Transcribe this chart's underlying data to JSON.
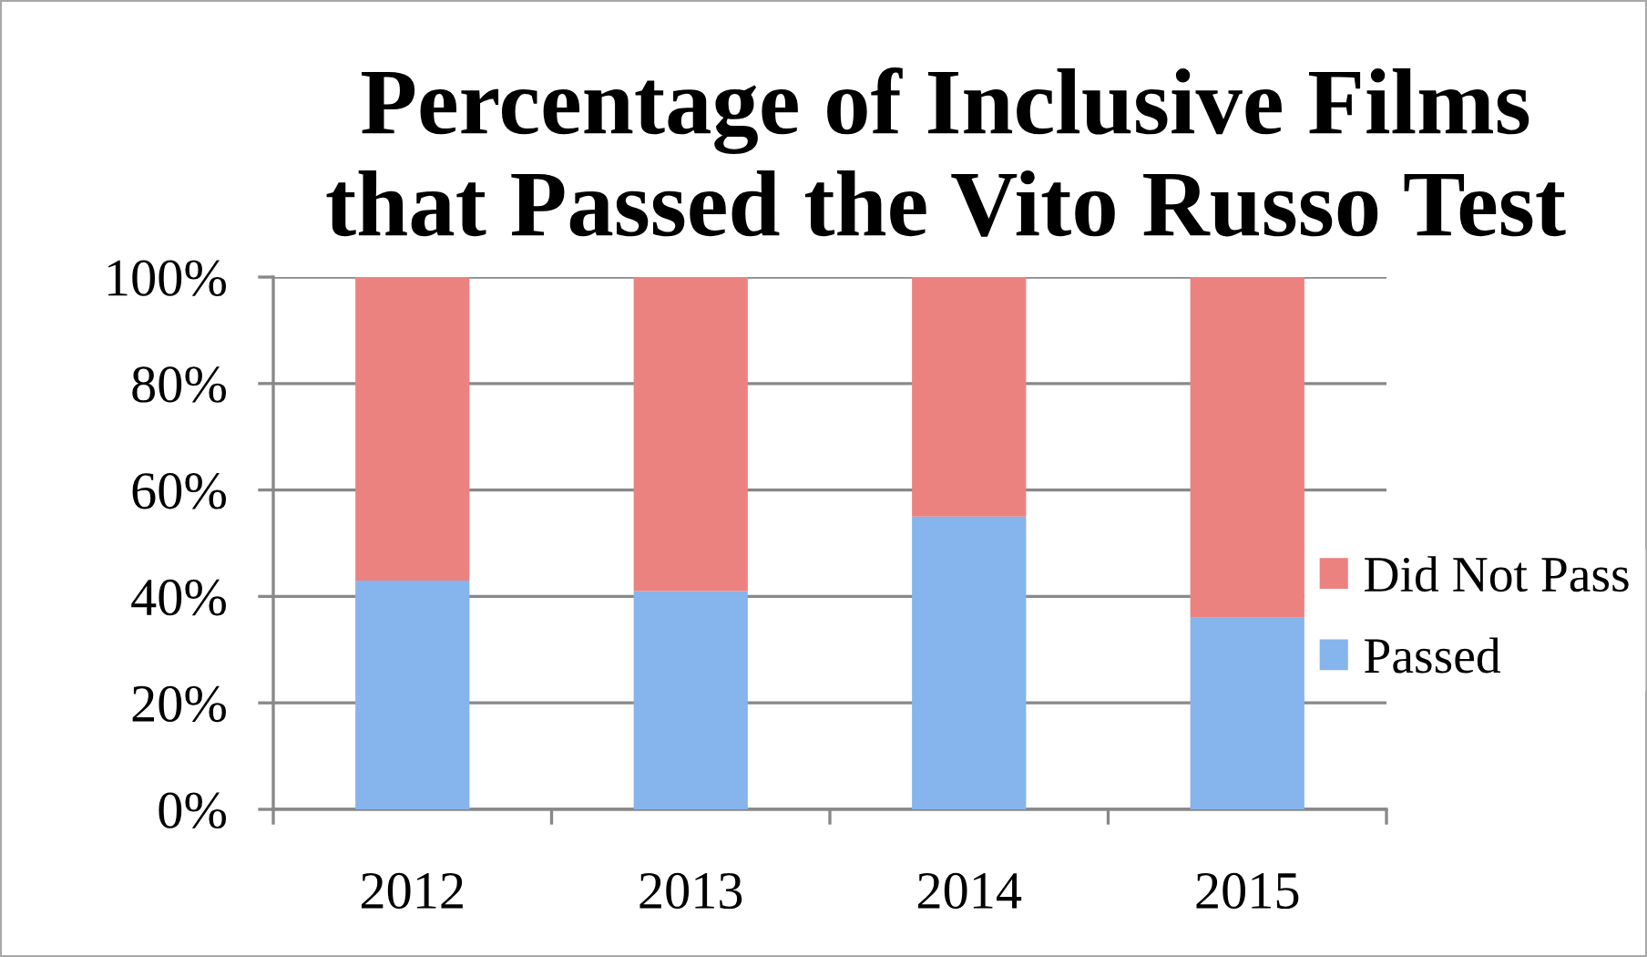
{
  "chart_data": {
    "type": "bar",
    "title": "Percentage of Inclusive Films\nthat Passed the Vito Russo Test",
    "categories": [
      "2012",
      "2013",
      "2014",
      "2015"
    ],
    "series": [
      {
        "name": "Passed",
        "color": "#86b4ec",
        "values": [
          43,
          41,
          55,
          36
        ]
      },
      {
        "name": "Did Not Pass",
        "color": "#ec8280",
        "values": [
          57,
          59,
          45,
          64
        ]
      }
    ],
    "stacked": true,
    "ylim": [
      0,
      100
    ],
    "yticks": [
      {
        "value": 0,
        "label": "0%"
      },
      {
        "value": 20,
        "label": "20%"
      },
      {
        "value": 40,
        "label": "40%"
      },
      {
        "value": 60,
        "label": "60%"
      },
      {
        "value": 80,
        "label": "80%"
      },
      {
        "value": 100,
        "label": "100%"
      }
    ],
    "grid": "y",
    "legend": "right"
  }
}
